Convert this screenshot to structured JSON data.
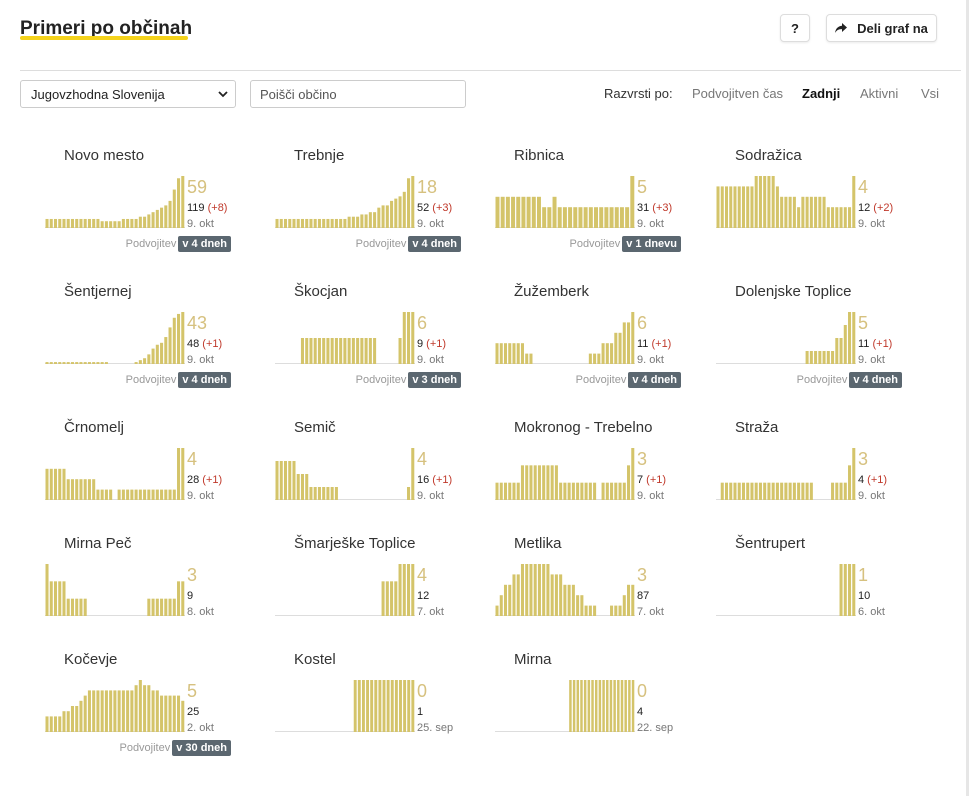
{
  "header": {
    "title": "Primeri po občinah",
    "help_label": "?",
    "share_label": "Deli graf na"
  },
  "filters": {
    "region": "Jugovzhodna Slovenija",
    "search_placeholder": "Poišči občino"
  },
  "sort": {
    "label": "Razvrsti po:",
    "options": [
      "Podvojitven čas",
      "Zadnji",
      "Aktivni",
      "Vsi"
    ],
    "active": "Zadnji"
  },
  "colors": {
    "bar": "#d4c46a",
    "accent": "#f5d31c",
    "delta": "#c0392b",
    "badge": "#5b6770"
  },
  "chart_data": [
    {
      "type": "bar",
      "name": "Novo mesto",
      "active": 59,
      "total": 119,
      "delta": "(+8)",
      "date": "9. okt",
      "doubling_label": "Podvojitev",
      "doubling": "v 4 dneh",
      "values": [
        4,
        4,
        4,
        4,
        4,
        4,
        4,
        4,
        4,
        4,
        4,
        4,
        4,
        3,
        3,
        3,
        3,
        3,
        4,
        4,
        4,
        4,
        5,
        5,
        6,
        7,
        8,
        9,
        10,
        12,
        17,
        22,
        23
      ]
    },
    {
      "type": "bar",
      "name": "Trebnje",
      "active": 18,
      "total": 52,
      "delta": "(+3)",
      "date": "9. okt",
      "doubling_label": "Podvojitev",
      "doubling": "v 4 dneh",
      "values": [
        4,
        4,
        4,
        4,
        4,
        4,
        4,
        4,
        4,
        4,
        4,
        4,
        4,
        4,
        4,
        4,
        4,
        5,
        5,
        5,
        6,
        6,
        7,
        7,
        9,
        10,
        10,
        12,
        13,
        14,
        16,
        22,
        23
      ]
    },
    {
      "type": "bar",
      "name": "Ribnica",
      "active": 5,
      "total": 31,
      "delta": "(+3)",
      "date": "9. okt",
      "doubling_label": "Podvojitev",
      "doubling": "v 1 dnevu",
      "values": [
        3,
        3,
        3,
        3,
        3,
        3,
        3,
        3,
        3,
        2,
        2,
        3,
        2,
        2,
        2,
        2,
        2,
        2,
        2,
        2,
        2,
        2,
        2,
        2,
        2,
        2,
        5
      ]
    },
    {
      "type": "bar",
      "name": "Sodražica",
      "active": 4,
      "total": 12,
      "delta": "(+2)",
      "date": "9. okt",
      "values": [
        4,
        4,
        4,
        4,
        4,
        4,
        4,
        4,
        4,
        5,
        5,
        5,
        5,
        5,
        4,
        3,
        3,
        3,
        3,
        2,
        3,
        3,
        3,
        3,
        3,
        3,
        2,
        2,
        2,
        2,
        2,
        2,
        5
      ]
    },
    {
      "type": "bar",
      "name": "Šentjernej",
      "active": 43,
      "total": 48,
      "delta": "(+1)",
      "date": "9. okt",
      "doubling_label": "Podvojitev",
      "doubling": "v 4 dneh",
      "values": [
        1,
        1,
        1,
        1,
        1,
        1,
        1,
        1,
        1,
        1,
        1,
        1,
        1,
        1,
        1,
        0,
        0,
        0,
        0,
        0,
        0,
        1,
        2,
        3,
        5,
        8,
        10,
        11,
        14,
        19,
        24,
        26,
        27
      ]
    },
    {
      "type": "bar",
      "name": "Škocjan",
      "active": 6,
      "total": 9,
      "delta": "(+1)",
      "date": "9. okt",
      "doubling_label": "Podvojitev",
      "doubling": "v 3 dneh",
      "values": [
        0,
        0,
        0,
        0,
        0,
        0,
        1,
        1,
        1,
        1,
        1,
        1,
        1,
        1,
        1,
        1,
        1,
        1,
        1,
        1,
        1,
        1,
        1,
        1,
        0,
        0,
        0,
        0,
        0,
        1,
        2,
        2,
        2
      ]
    },
    {
      "type": "bar",
      "name": "Žužemberk",
      "active": 6,
      "total": 11,
      "delta": "(+1)",
      "date": "9. okt",
      "doubling_label": "Podvojitev",
      "doubling": "v 4 dneh",
      "values": [
        2,
        2,
        2,
        2,
        2,
        2,
        2,
        1,
        1,
        0,
        0,
        0,
        0,
        0,
        0,
        0,
        0,
        0,
        0,
        0,
        0,
        0,
        1,
        1,
        1,
        2,
        2,
        2,
        3,
        3,
        4,
        4,
        5
      ]
    },
    {
      "type": "bar",
      "name": "Dolenjske Toplice",
      "active": 5,
      "total": 11,
      "delta": "(+1)",
      "date": "9. okt",
      "doubling_label": "Podvojitev",
      "doubling": "v 4 dneh",
      "values": [
        0,
        0,
        0,
        0,
        0,
        0,
        0,
        0,
        0,
        0,
        0,
        0,
        0,
        0,
        0,
        0,
        0,
        0,
        0,
        0,
        0,
        1,
        1,
        1,
        1,
        1,
        1,
        1,
        2,
        2,
        3,
        4,
        4
      ]
    },
    {
      "type": "bar",
      "name": "Črnomelj",
      "active": 4,
      "total": 28,
      "delta": "(+1)",
      "date": "9. okt",
      "values": [
        3,
        3,
        3,
        3,
        3,
        2,
        2,
        2,
        2,
        2,
        2,
        2,
        1,
        1,
        1,
        1,
        0,
        1,
        1,
        1,
        1,
        1,
        1,
        1,
        1,
        1,
        1,
        1,
        1,
        1,
        1,
        5,
        5
      ]
    },
    {
      "type": "bar",
      "name": "Semič",
      "active": 4,
      "total": 16,
      "delta": "(+1)",
      "date": "9. okt",
      "values": [
        3,
        3,
        3,
        3,
        3,
        2,
        2,
        2,
        1,
        1,
        1,
        1,
        1,
        1,
        1,
        0,
        0,
        0,
        0,
        0,
        0,
        0,
        0,
        0,
        0,
        0,
        0,
        0,
        0,
        0,
        0,
        1,
        4
      ]
    },
    {
      "type": "bar",
      "name": "Mokronog - Trebelno",
      "active": 3,
      "total": 7,
      "delta": "(+1)",
      "date": "9. okt",
      "values": [
        1,
        1,
        1,
        1,
        1,
        1,
        2,
        2,
        2,
        2,
        2,
        2,
        2,
        2,
        2,
        1,
        1,
        1,
        1,
        1,
        1,
        1,
        1,
        1,
        0,
        1,
        1,
        1,
        1,
        1,
        1,
        2,
        3
      ]
    },
    {
      "type": "bar",
      "name": "Straža",
      "active": 3,
      "total": 4,
      "delta": "(+1)",
      "date": "9. okt",
      "values": [
        0,
        1,
        1,
        1,
        1,
        1,
        1,
        1,
        1,
        1,
        1,
        1,
        1,
        1,
        1,
        1,
        1,
        1,
        1,
        1,
        1,
        1,
        1,
        0,
        0,
        0,
        0,
        1,
        1,
        1,
        1,
        2,
        3
      ]
    },
    {
      "type": "bar",
      "name": "Mirna Peč",
      "active": 3,
      "total": 9,
      "date": "8. okt",
      "values": [
        3,
        2,
        2,
        2,
        2,
        1,
        1,
        1,
        1,
        1,
        0,
        0,
        0,
        0,
        0,
        0,
        0,
        0,
        0,
        0,
        0,
        0,
        0,
        0,
        1,
        1,
        1,
        1,
        1,
        1,
        1,
        2,
        2
      ]
    },
    {
      "type": "bar",
      "name": "Šmarješke Toplice",
      "active": 4,
      "total": 12,
      "date": "7. okt",
      "values": [
        0,
        0,
        0,
        0,
        0,
        0,
        0,
        0,
        0,
        0,
        0,
        0,
        0,
        0,
        0,
        0,
        0,
        0,
        0,
        0,
        0,
        0,
        0,
        0,
        0,
        2,
        2,
        2,
        2,
        3,
        3,
        3,
        3
      ]
    },
    {
      "type": "bar",
      "name": "Metlika",
      "active": 3,
      "total": 87,
      "date": "7. okt",
      "values": [
        1,
        2,
        3,
        3,
        4,
        4,
        5,
        5,
        5,
        5,
        5,
        5,
        5,
        4,
        4,
        4,
        3,
        3,
        3,
        2,
        2,
        1,
        1,
        1,
        0,
        0,
        0,
        1,
        1,
        1,
        2,
        3,
        3
      ]
    },
    {
      "type": "bar",
      "name": "Šentrupert",
      "active": 1,
      "total": 10,
      "date": "6. okt",
      "values": [
        0,
        0,
        0,
        0,
        0,
        0,
        0,
        0,
        0,
        0,
        0,
        0,
        0,
        0,
        0,
        0,
        0,
        0,
        0,
        0,
        0,
        0,
        0,
        0,
        0,
        0,
        0,
        0,
        0,
        1,
        1,
        1,
        1
      ]
    },
    {
      "type": "bar",
      "name": "Kočevje",
      "active": 5,
      "total": 25,
      "date": "2. okt",
      "doubling_label": "Podvojitev",
      "doubling": "v 30 dneh",
      "values": [
        3,
        3,
        3,
        3,
        4,
        4,
        5,
        5,
        6,
        7,
        8,
        8,
        8,
        8,
        8,
        8,
        8,
        8,
        8,
        8,
        8,
        9,
        10,
        9,
        9,
        8,
        8,
        7,
        7,
        7,
        7,
        7,
        6
      ]
    },
    {
      "type": "bar",
      "name": "Kostel",
      "active": 0,
      "total": 1,
      "date": "25. sep",
      "values": [
        0,
        0,
        0,
        0,
        0,
        0,
        0,
        0,
        0,
        0,
        0,
        0,
        0,
        0,
        0,
        0,
        0,
        0,
        0,
        1,
        1,
        1,
        1,
        1,
        1,
        1,
        1,
        1,
        1,
        1,
        1,
        1,
        1,
        1
      ]
    },
    {
      "type": "bar",
      "name": "Mirna",
      "active": 0,
      "total": 4,
      "date": "22. sep",
      "values": [
        0,
        0,
        0,
        0,
        0,
        0,
        0,
        0,
        0,
        0,
        0,
        0,
        0,
        0,
        0,
        0,
        0,
        0,
        0,
        0,
        1,
        1,
        1,
        1,
        1,
        1,
        1,
        1,
        1,
        1,
        1,
        1,
        1,
        1,
        1,
        1,
        1,
        1
      ]
    }
  ]
}
